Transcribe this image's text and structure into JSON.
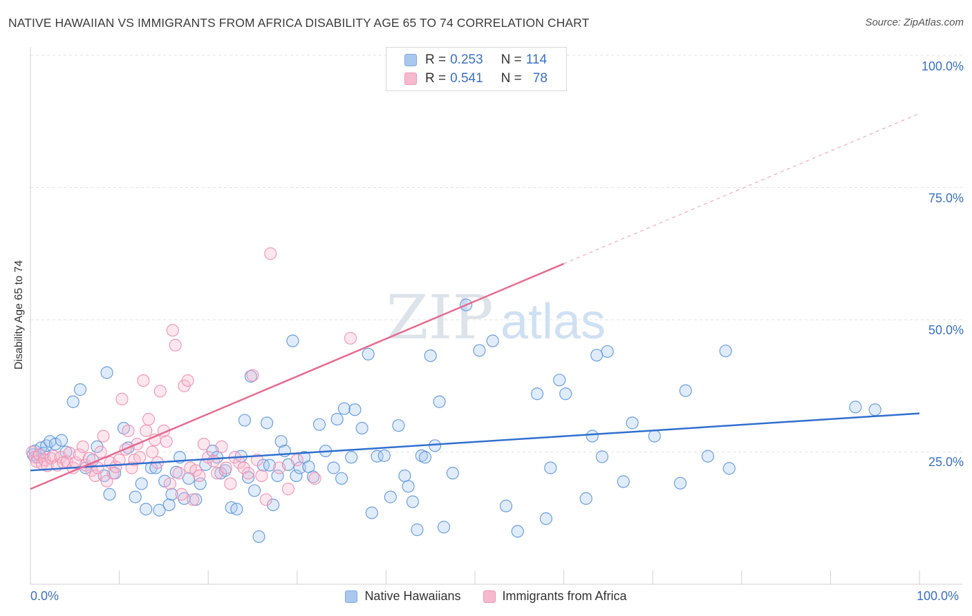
{
  "header": {
    "title": "NATIVE HAWAIIAN VS IMMIGRANTS FROM AFRICA DISABILITY AGE 65 TO 74 CORRELATION CHART",
    "source": "Source: ZipAtlas.com"
  },
  "watermark": {
    "zip": "ZIP",
    "atlas": "atlas"
  },
  "legend": {
    "rows": [
      {
        "r_label": "R =",
        "r_value": "0.253",
        "n_label": "N =",
        "n_value": "114",
        "color": "#a9c8f0"
      },
      {
        "r_label": "R =",
        "r_value": "0.541",
        "n_label": "N =",
        "n_value": "78",
        "color": "#f7b9cd"
      }
    ]
  },
  "bottom_legend": [
    {
      "label": "Native Hawaiians",
      "color": "#a9c8f0"
    },
    {
      "label": "Immigrants from Africa",
      "color": "#f7b9cd"
    }
  ],
  "chart_data": {
    "type": "scatter",
    "title": "NATIVE HAWAIIAN VS IMMIGRANTS FROM AFRICA DISABILITY AGE 65 TO 74 CORRELATION CHART",
    "xlabel": "",
    "ylabel": "Disability Age 65 to 74",
    "xlim": [
      0,
      100
    ],
    "ylim": [
      0,
      100
    ],
    "x_tick_labels": [
      "0.0%",
      "100.0%"
    ],
    "y_tick_labels": [
      "25.0%",
      "50.0%",
      "75.0%",
      "100.0%"
    ],
    "y_tick_values": [
      25,
      50,
      75,
      100
    ],
    "grid": true,
    "legend_position": "top-center",
    "series": [
      {
        "name": "Native Hawaiians",
        "color": "#5b95dd",
        "trend": {
          "x": [
            0,
            100
          ],
          "y": [
            21.5,
            32.3
          ],
          "style": "solid",
          "color": "#2f6fcf"
        },
        "points": [
          [
            0.3,
            24.5
          ],
          [
            0.5,
            25.2
          ],
          [
            0.8,
            24.0
          ],
          [
            1.2,
            25.8
          ],
          [
            1.5,
            24.8
          ],
          [
            1.8,
            26.2
          ],
          [
            2.2,
            27.0
          ],
          [
            2.8,
            26.5
          ],
          [
            3.5,
            27.2
          ],
          [
            4.0,
            25.0
          ],
          [
            4.8,
            34.5
          ],
          [
            5.6,
            36.8
          ],
          [
            6.2,
            22.0
          ],
          [
            7.0,
            23.5
          ],
          [
            7.5,
            26.0
          ],
          [
            8.3,
            20.5
          ],
          [
            8.6,
            40.0
          ],
          [
            8.9,
            17.0
          ],
          [
            9.5,
            21.0
          ],
          [
            10.5,
            29.5
          ],
          [
            11.0,
            25.8
          ],
          [
            11.8,
            16.5
          ],
          [
            12.5,
            19.0
          ],
          [
            13.0,
            14.2
          ],
          [
            13.6,
            22.0
          ],
          [
            14.1,
            22.0
          ],
          [
            14.5,
            14.0
          ],
          [
            15.1,
            19.5
          ],
          [
            15.6,
            15.0
          ],
          [
            15.9,
            17.0
          ],
          [
            16.4,
            21.2
          ],
          [
            16.8,
            24.0
          ],
          [
            17.3,
            16.2
          ],
          [
            17.8,
            20.0
          ],
          [
            18.6,
            16.0
          ],
          [
            19.1,
            19.0
          ],
          [
            19.7,
            22.6
          ],
          [
            20.5,
            25.2
          ],
          [
            21.0,
            24.0
          ],
          [
            21.4,
            21.0
          ],
          [
            21.9,
            21.5
          ],
          [
            22.6,
            14.5
          ],
          [
            23.2,
            14.2
          ],
          [
            23.7,
            24.2
          ],
          [
            24.1,
            31.0
          ],
          [
            24.5,
            20.2
          ],
          [
            24.8,
            39.3
          ],
          [
            25.2,
            17.7
          ],
          [
            25.7,
            9.0
          ],
          [
            26.2,
            22.5
          ],
          [
            26.6,
            30.5
          ],
          [
            26.9,
            22.5
          ],
          [
            27.3,
            15.0
          ],
          [
            27.8,
            20.5
          ],
          [
            28.2,
            27.0
          ],
          [
            28.6,
            25.2
          ],
          [
            29.0,
            22.6
          ],
          [
            29.5,
            46.0
          ],
          [
            29.9,
            20.5
          ],
          [
            30.3,
            22.0
          ],
          [
            30.8,
            24.0
          ],
          [
            31.3,
            22.2
          ],
          [
            31.8,
            20.3
          ],
          [
            32.5,
            30.2
          ],
          [
            33.2,
            25.2
          ],
          [
            34.1,
            22.0
          ],
          [
            34.5,
            31.2
          ],
          [
            35.0,
            20.0
          ],
          [
            35.3,
            33.2
          ],
          [
            36.1,
            24.0
          ],
          [
            36.5,
            33.0
          ],
          [
            37.3,
            29.5
          ],
          [
            38.0,
            43.5
          ],
          [
            38.4,
            13.5
          ],
          [
            39.0,
            24.2
          ],
          [
            39.8,
            24.3
          ],
          [
            40.5,
            16.5
          ],
          [
            41.4,
            30.0
          ],
          [
            42.1,
            20.5
          ],
          [
            42.5,
            18.5
          ],
          [
            43.0,
            15.6
          ],
          [
            43.5,
            10.3
          ],
          [
            44.0,
            24.3
          ],
          [
            44.4,
            24.0
          ],
          [
            45.0,
            43.2
          ],
          [
            45.5,
            26.2
          ],
          [
            46.0,
            34.5
          ],
          [
            46.5,
            10.8
          ],
          [
            47.5,
            21.0
          ],
          [
            49.0,
            52.8
          ],
          [
            50.5,
            44.2
          ],
          [
            52.0,
            46.0
          ],
          [
            53.5,
            14.8
          ],
          [
            54.8,
            10.0
          ],
          [
            57.0,
            36.0
          ],
          [
            58.0,
            12.4
          ],
          [
            58.5,
            22.0
          ],
          [
            59.5,
            38.6
          ],
          [
            60.2,
            36.0
          ],
          [
            62.5,
            16.2
          ],
          [
            63.2,
            28.0
          ],
          [
            63.7,
            43.3
          ],
          [
            64.3,
            24.1
          ],
          [
            64.9,
            44.0
          ],
          [
            66.7,
            19.4
          ],
          [
            67.7,
            30.5
          ],
          [
            70.2,
            28.0
          ],
          [
            73.1,
            19.1
          ],
          [
            73.7,
            36.6
          ],
          [
            76.2,
            24.2
          ],
          [
            78.2,
            44.1
          ],
          [
            78.6,
            21.9
          ],
          [
            92.8,
            33.5
          ],
          [
            95.0,
            33.0
          ]
        ]
      },
      {
        "name": "Immigrants from Africa",
        "color": "#f08fb0",
        "trend": {
          "x": [
            0,
            100
          ],
          "y": [
            18.0,
            89.0
          ],
          "style": "solid-then-dashed",
          "solid_until_x": 60,
          "color": "#e7698f"
        },
        "points": [
          [
            0.2,
            25.0
          ],
          [
            0.5,
            24.0
          ],
          [
            0.7,
            23.2
          ],
          [
            1.0,
            24.5
          ],
          [
            1.3,
            22.8
          ],
          [
            1.6,
            23.5
          ],
          [
            1.9,
            22.4
          ],
          [
            2.3,
            23.8
          ],
          [
            2.6,
            24.2
          ],
          [
            3.0,
            22.5
          ],
          [
            3.4,
            24.0
          ],
          [
            3.7,
            23.0
          ],
          [
            4.1,
            23.2
          ],
          [
            4.4,
            24.8
          ],
          [
            4.8,
            22.0
          ],
          [
            5.1,
            23.0
          ],
          [
            5.5,
            24.5
          ],
          [
            5.9,
            26.0
          ],
          [
            6.2,
            22.5
          ],
          [
            6.6,
            23.8
          ],
          [
            6.9,
            21.5
          ],
          [
            7.3,
            20.5
          ],
          [
            7.6,
            22.0
          ],
          [
            7.9,
            25.0
          ],
          [
            8.2,
            28.0
          ],
          [
            8.6,
            19.5
          ],
          [
            9.0,
            23.0
          ],
          [
            9.3,
            21.0
          ],
          [
            9.6,
            22.2
          ],
          [
            10.0,
            23.5
          ],
          [
            10.3,
            35.0
          ],
          [
            10.7,
            25.5
          ],
          [
            11.0,
            29.0
          ],
          [
            11.4,
            22.0
          ],
          [
            11.7,
            23.5
          ],
          [
            12.0,
            26.5
          ],
          [
            12.3,
            24.0
          ],
          [
            12.7,
            38.5
          ],
          [
            13.0,
            29.0
          ],
          [
            13.3,
            31.2
          ],
          [
            13.7,
            25.0
          ],
          [
            14.0,
            27.3
          ],
          [
            14.3,
            23.0
          ],
          [
            14.6,
            36.5
          ],
          [
            15.0,
            29.0
          ],
          [
            15.3,
            27.0
          ],
          [
            15.7,
            19.0
          ],
          [
            16.0,
            48.0
          ],
          [
            16.3,
            45.2
          ],
          [
            16.7,
            21.0
          ],
          [
            17.0,
            17.0
          ],
          [
            17.3,
            37.5
          ],
          [
            17.7,
            38.5
          ],
          [
            18.0,
            22.0
          ],
          [
            18.3,
            16.0
          ],
          [
            18.6,
            21.5
          ],
          [
            19.0,
            20.5
          ],
          [
            19.5,
            26.5
          ],
          [
            20.0,
            24.0
          ],
          [
            20.6,
            23.3
          ],
          [
            21.0,
            21.0
          ],
          [
            21.5,
            26.0
          ],
          [
            22.0,
            22.0
          ],
          [
            22.5,
            19.0
          ],
          [
            23.0,
            24.0
          ],
          [
            23.5,
            23.0
          ],
          [
            24.0,
            22.0
          ],
          [
            24.5,
            21.0
          ],
          [
            25.0,
            39.5
          ],
          [
            25.5,
            23.5
          ],
          [
            26.0,
            20.5
          ],
          [
            26.5,
            16.0
          ],
          [
            27.0,
            62.5
          ],
          [
            28.0,
            22.0
          ],
          [
            29.0,
            18.0
          ],
          [
            30.0,
            23.5
          ],
          [
            32.0,
            20.0
          ],
          [
            36.0,
            46.5
          ]
        ]
      }
    ]
  }
}
